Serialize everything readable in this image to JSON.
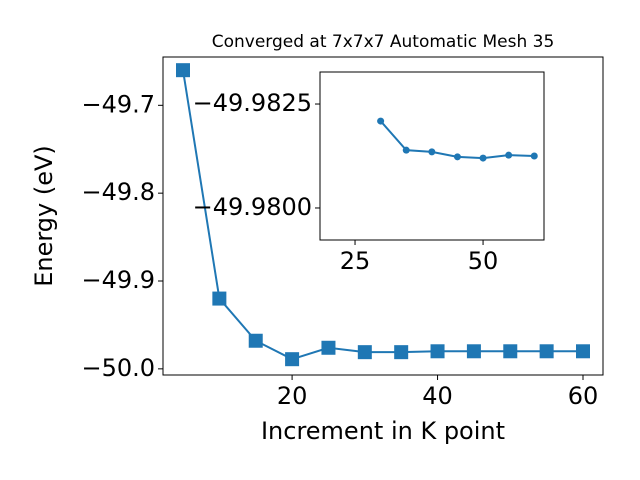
{
  "chart_data": [
    {
      "type": "line",
      "title": "Converged at 7x7x7 Automatic Mesh 35",
      "xlabel": "Increment in K point",
      "ylabel": "Energy (eV)",
      "x": [
        5,
        10,
        15,
        20,
        25,
        30,
        35,
        40,
        45,
        50,
        55,
        60
      ],
      "series": [
        {
          "color": "#1f77b4",
          "marker": "square",
          "values": [
            -49.66,
            -49.92,
            -49.968,
            -49.989,
            -49.976,
            -49.981,
            -49.981,
            -49.98,
            -49.98,
            -49.98,
            -49.98,
            -49.98
          ]
        }
      ],
      "xlim": [
        2.25,
        62.75
      ],
      "xticks": [
        20,
        40,
        60
      ],
      "ylim": [
        -50.007,
        -49.645
      ],
      "yticks": [
        {
          "value": -50.0,
          "label": "−50.0"
        },
        {
          "value": -49.9,
          "label": "−49.9"
        },
        {
          "value": -49.8,
          "label": "−49.8"
        },
        {
          "value": -49.7,
          "label": "−49.7"
        }
      ]
    },
    {
      "type": "line",
      "x": [
        30,
        35,
        40,
        45,
        50,
        55,
        60
      ],
      "series": [
        {
          "color": "#1f77b4",
          "marker": "circle",
          "values": [
            -49.98209,
            -49.98139,
            -49.98135,
            -49.98123,
            -49.9812,
            -49.98127,
            -49.98125
          ]
        }
      ],
      "xlim": [
        18.16,
        61.9
      ],
      "xticks": [
        25,
        50
      ],
      "ylim": [
        -49.97923,
        -49.98327
      ],
      "yticks": [
        {
          "value": -49.98,
          "label": "−49.9800"
        },
        {
          "value": -49.9825,
          "label": "−49.9825"
        }
      ]
    }
  ]
}
